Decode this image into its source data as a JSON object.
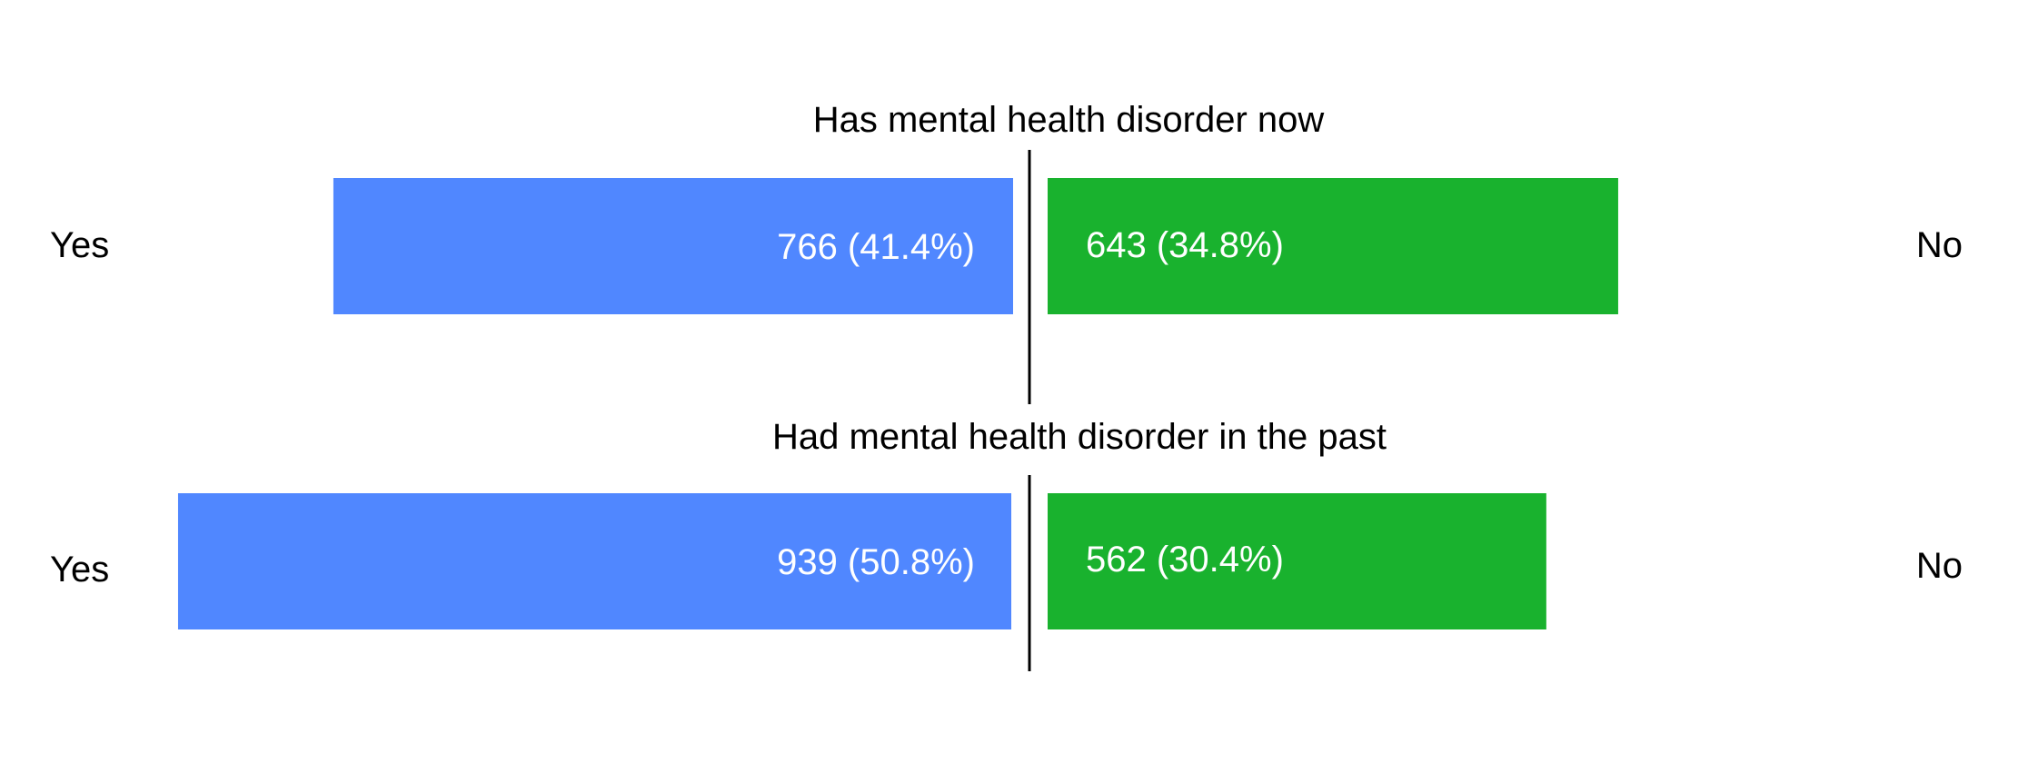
{
  "chart_data": {
    "type": "bar",
    "orientation": "horizontal-diverging",
    "panels": [
      {
        "title": "Has mental health disorder now",
        "left_label": "Yes",
        "right_label": "No",
        "left": {
          "value": 766,
          "label": "766 (41.4%)"
        },
        "right": {
          "value": 643,
          "label": "643 (34.8%)"
        }
      },
      {
        "title": "Had mental health disorder in the past",
        "left_label": "Yes",
        "right_label": "No",
        "left": {
          "value": 939,
          "label": "939 (50.8%)"
        },
        "right": {
          "value": 562,
          "label": "562 (30.4%)"
        }
      }
    ],
    "colors": {
      "left": "#5087FF",
      "right": "#19B22E"
    },
    "grid": false,
    "legend": "none"
  }
}
